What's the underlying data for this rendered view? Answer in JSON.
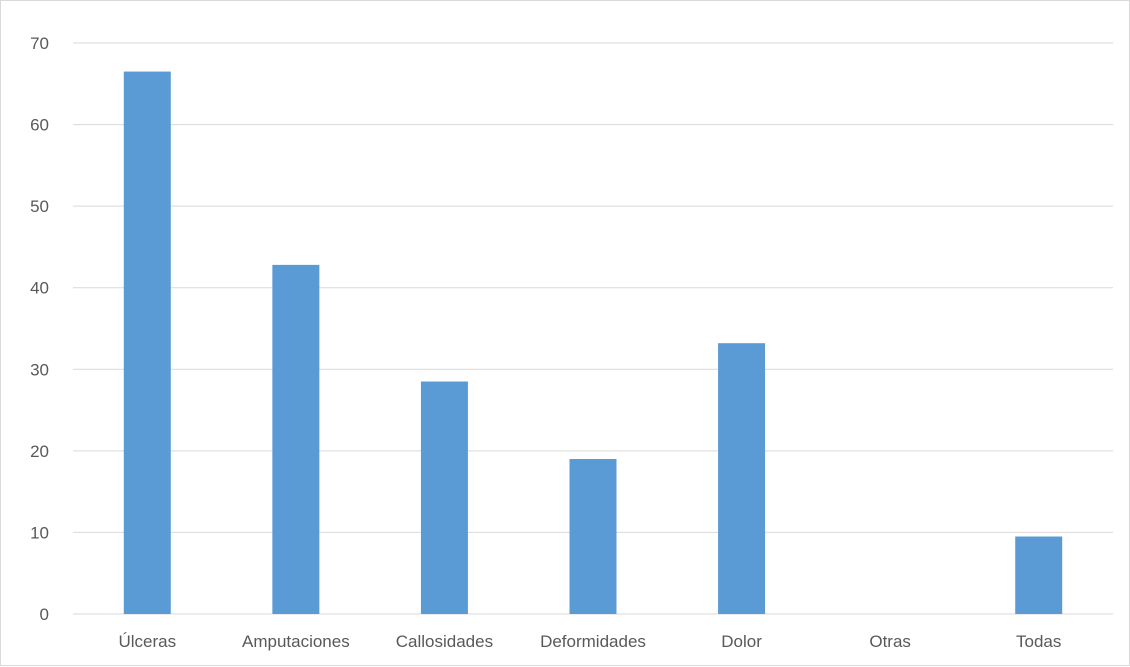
{
  "chart_data": {
    "type": "bar",
    "categories": [
      "Úlceras",
      "Amputaciones",
      "Callosidades",
      "Deformidades",
      "Dolor",
      "Otras",
      "Todas"
    ],
    "values": [
      66.5,
      42.8,
      28.5,
      19.0,
      33.2,
      0,
      9.5
    ],
    "yticks": [
      0,
      10,
      20,
      30,
      40,
      50,
      60,
      70
    ],
    "ylim": [
      0,
      70
    ],
    "grid": true,
    "legend": "none",
    "colors": {
      "bar": "#5b9bd5",
      "grid": "#d9d9d9",
      "text": "#595959"
    }
  }
}
